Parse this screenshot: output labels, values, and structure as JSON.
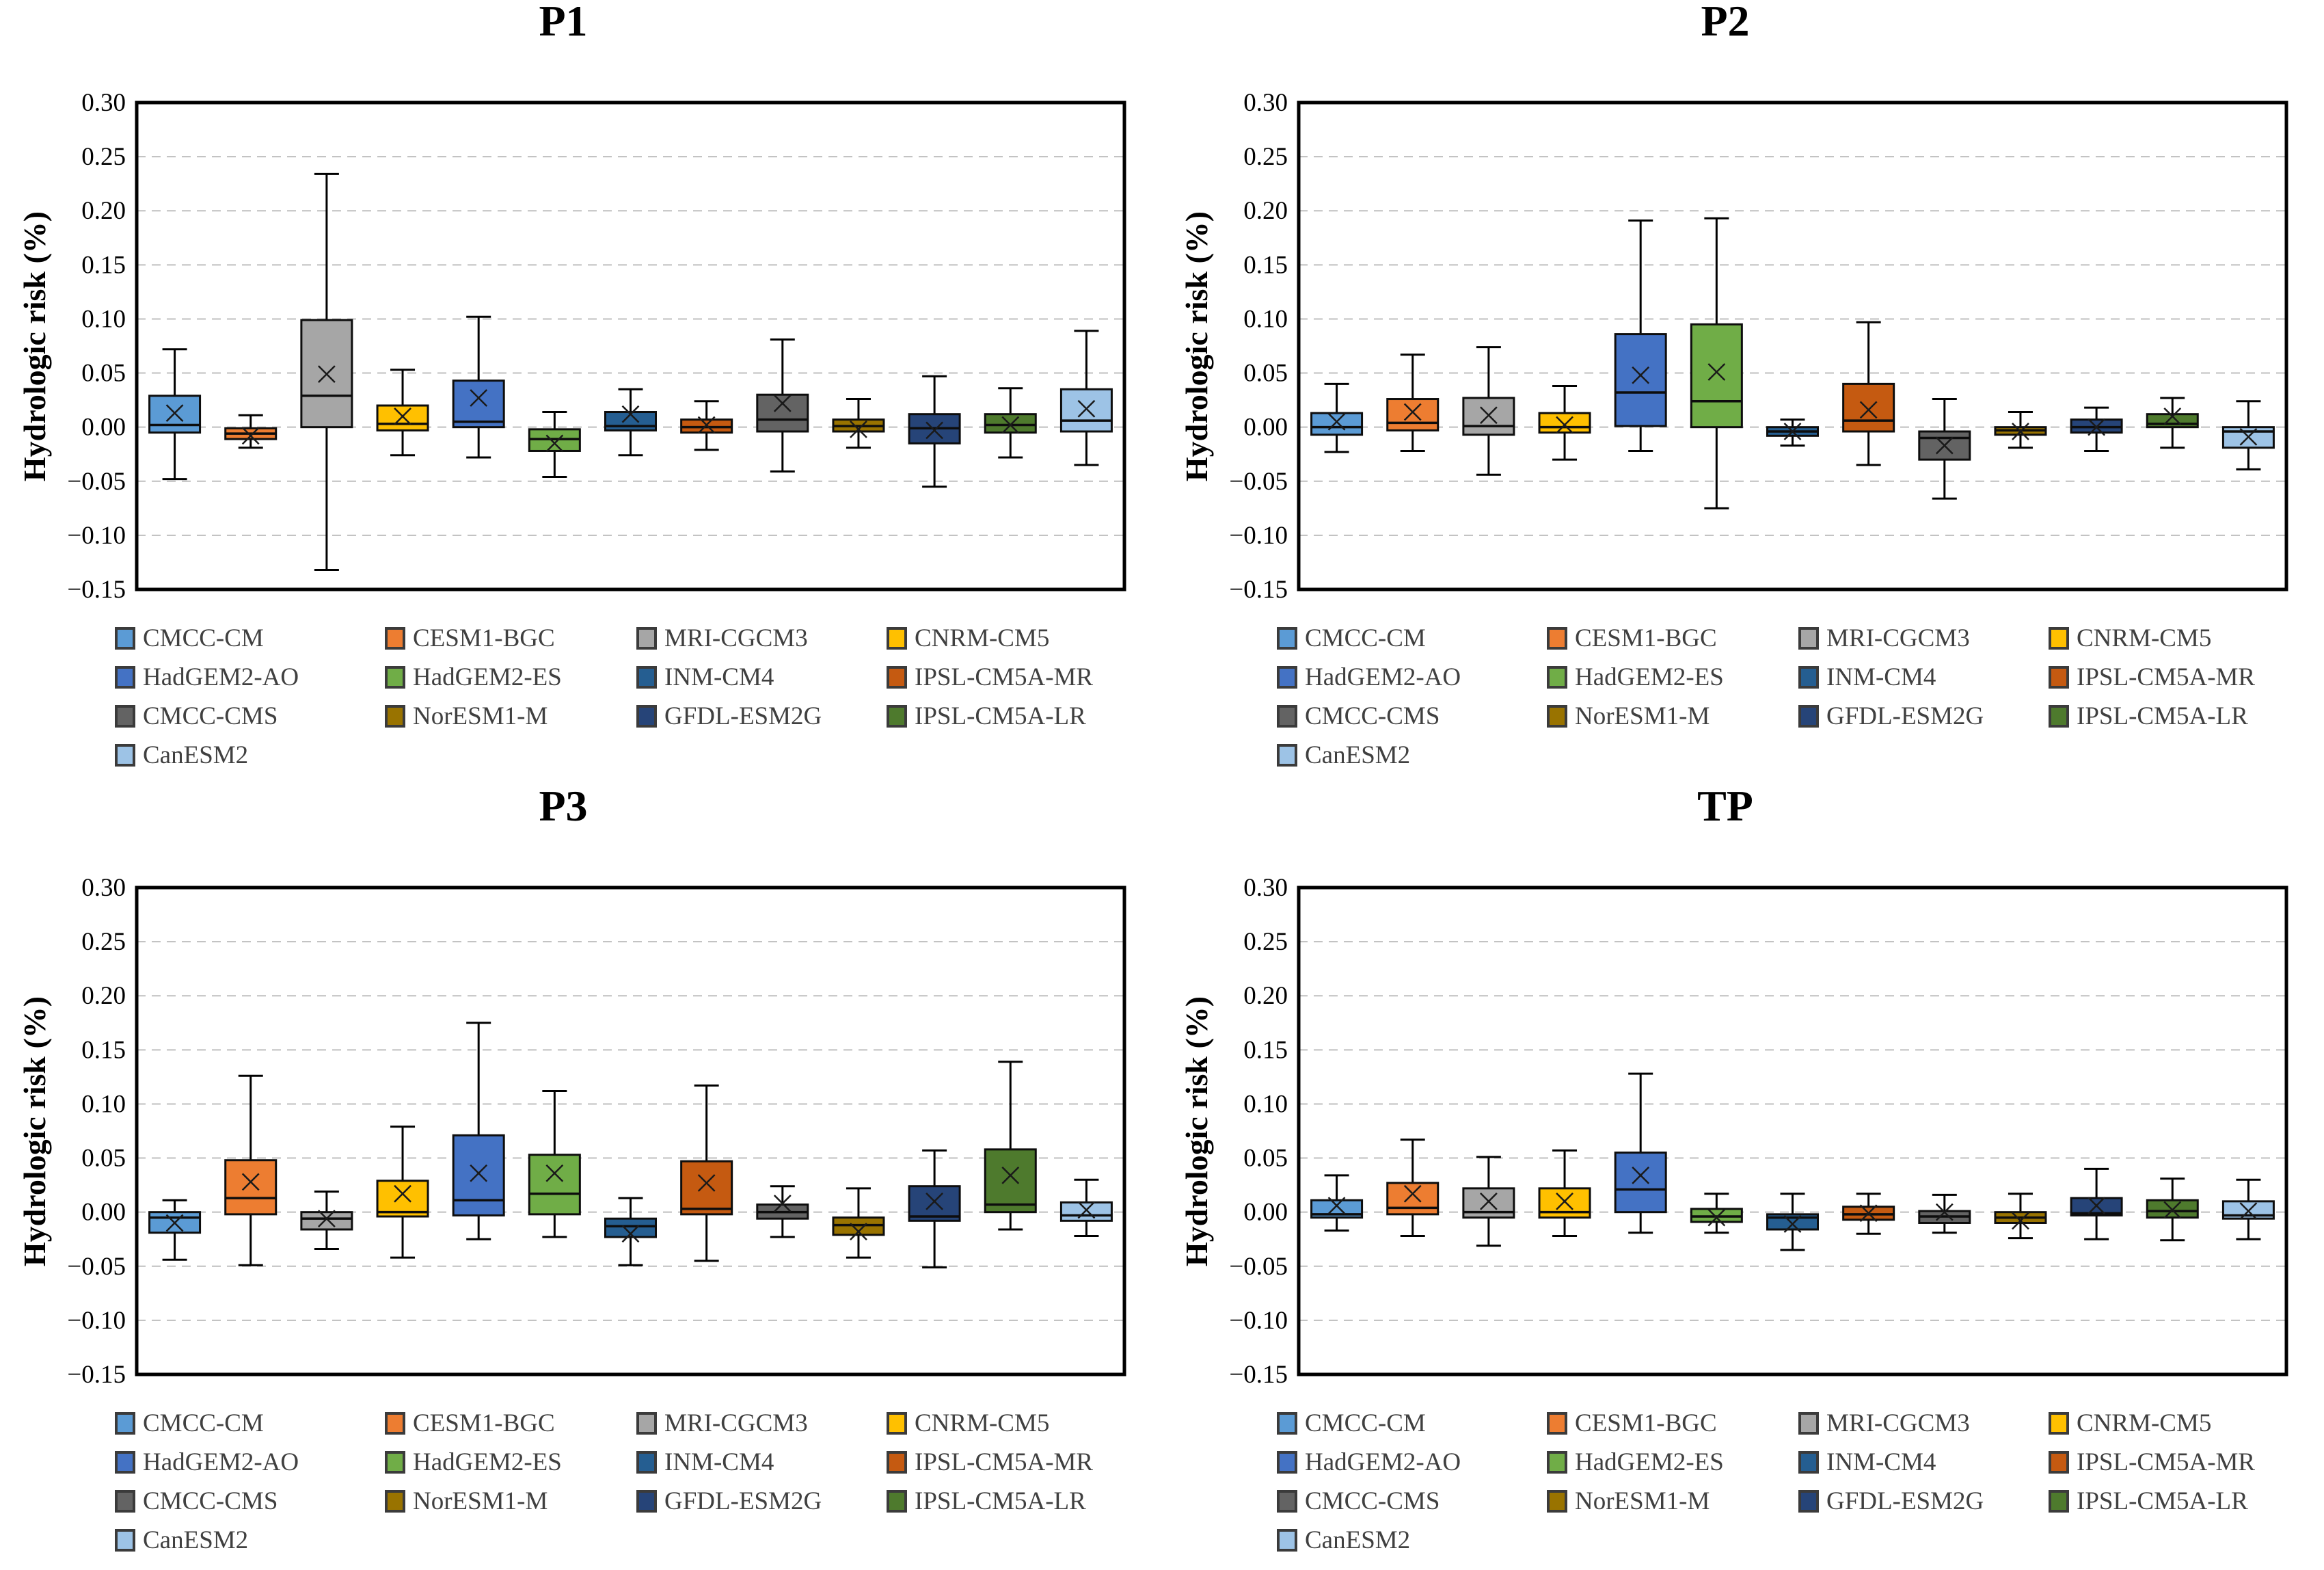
{
  "chart_data": [
    {
      "type": "boxplot",
      "title": "P1",
      "ylabel": "Hydrologic risk (%)",
      "ylim": [
        -0.15,
        0.3
      ],
      "ytick_step": 0.05,
      "grid": "horizontal-dashed",
      "legend_position": "bottom",
      "categories": [
        "CMCC-CM",
        "CESM1-BGC",
        "MRI-CGCM3",
        "CNRM-CM5",
        "HadGEM2-AO",
        "HadGEM2-ES",
        "INM-CM4",
        "IPSL-CM5A-MR",
        "CMCC-CMS",
        "NorESM1-M",
        "GFDL-ESM2G",
        "IPSL-CM5A-LR",
        "CanESM2"
      ],
      "series": [
        {
          "name": "CMCC-CM",
          "color": "#5B9BD5",
          "whislo": -0.048,
          "q1": -0.005,
          "med": 0.002,
          "q3": 0.029,
          "whishi": 0.072,
          "mean": 0.013
        },
        {
          "name": "CESM1-BGC",
          "color": "#ED7D31",
          "whislo": -0.019,
          "q1": -0.011,
          "med": -0.006,
          "q3": -0.001,
          "whishi": 0.011,
          "mean": -0.008
        },
        {
          "name": "MRI-CGCM3",
          "color": "#A6A6A6",
          "whislo": -0.132,
          "q1": 0.0,
          "med": 0.029,
          "q3": 0.099,
          "whishi": 0.234,
          "mean": 0.049
        },
        {
          "name": "CNRM-CM5",
          "color": "#FFC000",
          "whislo": -0.026,
          "q1": -0.003,
          "med": 0.003,
          "q3": 0.02,
          "whishi": 0.053,
          "mean": 0.01
        },
        {
          "name": "HadGEM2-AO",
          "color": "#4472C4",
          "whislo": -0.028,
          "q1": 0.0,
          "med": 0.005,
          "q3": 0.043,
          "whishi": 0.102,
          "mean": 0.027
        },
        {
          "name": "HadGEM2-ES",
          "color": "#70AD47",
          "whislo": -0.046,
          "q1": -0.022,
          "med": -0.011,
          "q3": -0.002,
          "whishi": 0.014,
          "mean": -0.015
        },
        {
          "name": "INM-CM4",
          "color": "#255E91",
          "whislo": -0.026,
          "q1": -0.003,
          "med": 0.001,
          "q3": 0.014,
          "whishi": 0.035,
          "mean": 0.012
        },
        {
          "name": "IPSL-CM5A-MR",
          "color": "#C55A11",
          "whislo": -0.021,
          "q1": -0.005,
          "med": 0.0,
          "q3": 0.007,
          "whishi": 0.024,
          "mean": 0.002
        },
        {
          "name": "CMCC-CMS",
          "color": "#636363",
          "whislo": -0.041,
          "q1": -0.004,
          "med": 0.007,
          "q3": 0.03,
          "whishi": 0.081,
          "mean": 0.022
        },
        {
          "name": "NorESM1-M",
          "color": "#997300",
          "whislo": -0.019,
          "q1": -0.004,
          "med": 0.001,
          "q3": 0.007,
          "whishi": 0.026,
          "mean": -0.002
        },
        {
          "name": "GFDL-ESM2G",
          "color": "#264478",
          "whislo": -0.055,
          "q1": -0.015,
          "med": -0.001,
          "q3": 0.012,
          "whishi": 0.047,
          "mean": -0.003
        },
        {
          "name": "IPSL-CM5A-LR",
          "color": "#4E7A2D",
          "whislo": -0.028,
          "q1": -0.005,
          "med": 0.002,
          "q3": 0.012,
          "whishi": 0.036,
          "mean": 0.002
        },
        {
          "name": "CanESM2",
          "color": "#9DC3E6",
          "whislo": -0.035,
          "q1": -0.004,
          "med": 0.006,
          "q3": 0.035,
          "whishi": 0.089,
          "mean": 0.017
        }
      ]
    },
    {
      "type": "boxplot",
      "title": "P2",
      "ylabel": "Hydrologic risk (%)",
      "ylim": [
        -0.15,
        0.3
      ],
      "ytick_step": 0.05,
      "grid": "horizontal-dashed",
      "legend_position": "bottom",
      "categories": [
        "CMCC-CM",
        "CESM1-BGC",
        "MRI-CGCM3",
        "CNRM-CM5",
        "HadGEM2-AO",
        "HadGEM2-ES",
        "INM-CM4",
        "IPSL-CM5A-MR",
        "CMCC-CMS",
        "NorESM1-M",
        "GFDL-ESM2G",
        "IPSL-CM5A-LR",
        "CanESM2"
      ],
      "series": [
        {
          "name": "CMCC-CM",
          "color": "#5B9BD5",
          "whislo": -0.023,
          "q1": -0.007,
          "med": 0.0,
          "q3": 0.013,
          "whishi": 0.04,
          "mean": 0.005
        },
        {
          "name": "CESM1-BGC",
          "color": "#ED7D31",
          "whislo": -0.022,
          "q1": -0.003,
          "med": 0.004,
          "q3": 0.026,
          "whishi": 0.067,
          "mean": 0.014
        },
        {
          "name": "MRI-CGCM3",
          "color": "#A6A6A6",
          "whislo": -0.044,
          "q1": -0.007,
          "med": 0.001,
          "q3": 0.027,
          "whishi": 0.074,
          "mean": 0.011
        },
        {
          "name": "CNRM-CM5",
          "color": "#FFC000",
          "whislo": -0.03,
          "q1": -0.005,
          "med": 0.0,
          "q3": 0.013,
          "whishi": 0.038,
          "mean": 0.002
        },
        {
          "name": "HadGEM2-AO",
          "color": "#4472C4",
          "whislo": -0.022,
          "q1": 0.001,
          "med": 0.032,
          "q3": 0.086,
          "whishi": 0.191,
          "mean": 0.048
        },
        {
          "name": "HadGEM2-ES",
          "color": "#70AD47",
          "whislo": -0.075,
          "q1": 0.0,
          "med": 0.024,
          "q3": 0.095,
          "whishi": 0.193,
          "mean": 0.051
        },
        {
          "name": "INM-CM4",
          "color": "#255E91",
          "whislo": -0.017,
          "q1": -0.008,
          "med": -0.004,
          "q3": 0.0,
          "whishi": 0.007,
          "mean": -0.004
        },
        {
          "name": "IPSL-CM5A-MR",
          "color": "#C55A11",
          "whislo": -0.035,
          "q1": -0.004,
          "med": 0.006,
          "q3": 0.04,
          "whishi": 0.097,
          "mean": 0.016
        },
        {
          "name": "CMCC-CMS",
          "color": "#636363",
          "whislo": -0.066,
          "q1": -0.03,
          "med": -0.01,
          "q3": -0.004,
          "whishi": 0.026,
          "mean": -0.017
        },
        {
          "name": "NorESM1-M",
          "color": "#997300",
          "whislo": -0.019,
          "q1": -0.007,
          "med": -0.003,
          "q3": 0.0,
          "whishi": 0.014,
          "mean": -0.004
        },
        {
          "name": "GFDL-ESM2G",
          "color": "#264478",
          "whislo": -0.022,
          "q1": -0.005,
          "med": 0.0,
          "q3": 0.007,
          "whishi": 0.018,
          "mean": 0.0
        },
        {
          "name": "IPSL-CM5A-LR",
          "color": "#4E7A2D",
          "whislo": -0.019,
          "q1": 0.0,
          "med": 0.003,
          "q3": 0.012,
          "whishi": 0.027,
          "mean": 0.01
        },
        {
          "name": "CanESM2",
          "color": "#9DC3E6",
          "whislo": -0.039,
          "q1": -0.019,
          "med": -0.004,
          "q3": 0.0,
          "whishi": 0.024,
          "mean": -0.009
        }
      ]
    },
    {
      "type": "boxplot",
      "title": "P3",
      "ylabel": "Hydrologic risk (%)",
      "ylim": [
        -0.15,
        0.3
      ],
      "ytick_step": 0.05,
      "grid": "horizontal-dashed",
      "legend_position": "bottom",
      "categories": [
        "CMCC-CM",
        "CESM1-BGC",
        "MRI-CGCM3",
        "CNRM-CM5",
        "HadGEM2-AO",
        "HadGEM2-ES",
        "INM-CM4",
        "IPSL-CM5A-MR",
        "CMCC-CMS",
        "NorESM1-M",
        "GFDL-ESM2G",
        "IPSL-CM5A-LR",
        "CanESM2"
      ],
      "series": [
        {
          "name": "CMCC-CM",
          "color": "#5B9BD5",
          "whislo": -0.044,
          "q1": -0.019,
          "med": -0.005,
          "q3": 0.0,
          "whishi": 0.011,
          "mean": -0.01
        },
        {
          "name": "CESM1-BGC",
          "color": "#ED7D31",
          "whislo": -0.049,
          "q1": -0.002,
          "med": 0.013,
          "q3": 0.048,
          "whishi": 0.126,
          "mean": 0.028
        },
        {
          "name": "MRI-CGCM3",
          "color": "#A6A6A6",
          "whislo": -0.034,
          "q1": -0.016,
          "med": -0.006,
          "q3": 0.0,
          "whishi": 0.019,
          "mean": -0.006
        },
        {
          "name": "CNRM-CM5",
          "color": "#FFC000",
          "whislo": -0.042,
          "q1": -0.004,
          "med": 0.0,
          "q3": 0.029,
          "whishi": 0.079,
          "mean": 0.017
        },
        {
          "name": "HadGEM2-AO",
          "color": "#4472C4",
          "whislo": -0.025,
          "q1": -0.003,
          "med": 0.011,
          "q3": 0.071,
          "whishi": 0.175,
          "mean": 0.036
        },
        {
          "name": "HadGEM2-ES",
          "color": "#70AD47",
          "whislo": -0.023,
          "q1": -0.002,
          "med": 0.017,
          "q3": 0.053,
          "whishi": 0.112,
          "mean": 0.036
        },
        {
          "name": "INM-CM4",
          "color": "#255E91",
          "whislo": -0.049,
          "q1": -0.023,
          "med": -0.013,
          "q3": -0.006,
          "whishi": 0.013,
          "mean": -0.02
        },
        {
          "name": "IPSL-CM5A-MR",
          "color": "#C55A11",
          "whislo": -0.045,
          "q1": -0.002,
          "med": 0.003,
          "q3": 0.047,
          "whishi": 0.117,
          "mean": 0.027
        },
        {
          "name": "CMCC-CMS",
          "color": "#636363",
          "whislo": -0.023,
          "q1": -0.006,
          "med": 0.0,
          "q3": 0.007,
          "whishi": 0.024,
          "mean": 0.008
        },
        {
          "name": "NorESM1-M",
          "color": "#997300",
          "whislo": -0.042,
          "q1": -0.021,
          "med": -0.012,
          "q3": -0.005,
          "whishi": 0.022,
          "mean": -0.018
        },
        {
          "name": "GFDL-ESM2G",
          "color": "#264478",
          "whislo": -0.051,
          "q1": -0.008,
          "med": -0.004,
          "q3": 0.024,
          "whishi": 0.057,
          "mean": 0.01
        },
        {
          "name": "IPSL-CM5A-LR",
          "color": "#4E7A2D",
          "whislo": -0.016,
          "q1": 0.0,
          "med": 0.007,
          "q3": 0.058,
          "whishi": 0.139,
          "mean": 0.034
        },
        {
          "name": "CanESM2",
          "color": "#9DC3E6",
          "whislo": -0.022,
          "q1": -0.008,
          "med": -0.003,
          "q3": 0.009,
          "whishi": 0.03,
          "mean": 0.002
        }
      ]
    },
    {
      "type": "boxplot",
      "title": "TP",
      "ylabel": "Hydrologic risk (%)",
      "ylim": [
        -0.15,
        0.3
      ],
      "ytick_step": 0.05,
      "grid": "horizontal-dashed",
      "legend_position": "bottom",
      "categories": [
        "CMCC-CM",
        "CESM1-BGC",
        "MRI-CGCM3",
        "CNRM-CM5",
        "HadGEM2-AO",
        "HadGEM2-ES",
        "INM-CM4",
        "IPSL-CM5A-MR",
        "CMCC-CMS",
        "NorESM1-M",
        "GFDL-ESM2G",
        "IPSL-CM5A-LR",
        "CanESM2"
      ],
      "series": [
        {
          "name": "CMCC-CM",
          "color": "#5B9BD5",
          "whislo": -0.017,
          "q1": -0.005,
          "med": -0.002,
          "q3": 0.011,
          "whishi": 0.034,
          "mean": 0.006
        },
        {
          "name": "CESM1-BGC",
          "color": "#ED7D31",
          "whislo": -0.022,
          "q1": -0.002,
          "med": 0.004,
          "q3": 0.027,
          "whishi": 0.067,
          "mean": 0.017
        },
        {
          "name": "MRI-CGCM3",
          "color": "#A6A6A6",
          "whislo": -0.031,
          "q1": -0.005,
          "med": 0.0,
          "q3": 0.022,
          "whishi": 0.051,
          "mean": 0.01
        },
        {
          "name": "CNRM-CM5",
          "color": "#FFC000",
          "whislo": -0.022,
          "q1": -0.005,
          "med": 0.0,
          "q3": 0.022,
          "whishi": 0.057,
          "mean": 0.01
        },
        {
          "name": "HadGEM2-AO",
          "color": "#4472C4",
          "whislo": -0.019,
          "q1": 0.0,
          "med": 0.021,
          "q3": 0.055,
          "whishi": 0.128,
          "mean": 0.034
        },
        {
          "name": "HadGEM2-ES",
          "color": "#70AD47",
          "whislo": -0.019,
          "q1": -0.009,
          "med": -0.004,
          "q3": 0.003,
          "whishi": 0.017,
          "mean": -0.005
        },
        {
          "name": "INM-CM4",
          "color": "#255E91",
          "whislo": -0.035,
          "q1": -0.016,
          "med": -0.005,
          "q3": -0.002,
          "whishi": 0.017,
          "mean": -0.011
        },
        {
          "name": "IPSL-CM5A-MR",
          "color": "#C55A11",
          "whislo": -0.02,
          "q1": -0.007,
          "med": -0.002,
          "q3": 0.005,
          "whishi": 0.017,
          "mean": -0.001
        },
        {
          "name": "CMCC-CMS",
          "color": "#636363",
          "whislo": -0.019,
          "q1": -0.01,
          "med": -0.004,
          "q3": 0.001,
          "whishi": 0.016,
          "mean": 0.0
        },
        {
          "name": "NorESM1-M",
          "color": "#997300",
          "whislo": -0.024,
          "q1": -0.01,
          "med": -0.005,
          "q3": 0.0,
          "whishi": 0.017,
          "mean": -0.008
        },
        {
          "name": "GFDL-ESM2G",
          "color": "#264478",
          "whislo": -0.025,
          "q1": -0.003,
          "med": -0.001,
          "q3": 0.013,
          "whishi": 0.04,
          "mean": 0.006
        },
        {
          "name": "IPSL-CM5A-LR",
          "color": "#4E7A2D",
          "whislo": -0.026,
          "q1": -0.005,
          "med": 0.001,
          "q3": 0.011,
          "whishi": 0.031,
          "mean": 0.002
        },
        {
          "name": "CanESM2",
          "color": "#9DC3E6",
          "whislo": -0.025,
          "q1": -0.006,
          "med": -0.003,
          "q3": 0.01,
          "whishi": 0.03,
          "mean": 0.001
        }
      ]
    }
  ],
  "style_colors": {
    "frame": "#000000",
    "gridline": "#bfbfbf",
    "box_border": "#0d0d0d",
    "legend_text": "#404040"
  }
}
